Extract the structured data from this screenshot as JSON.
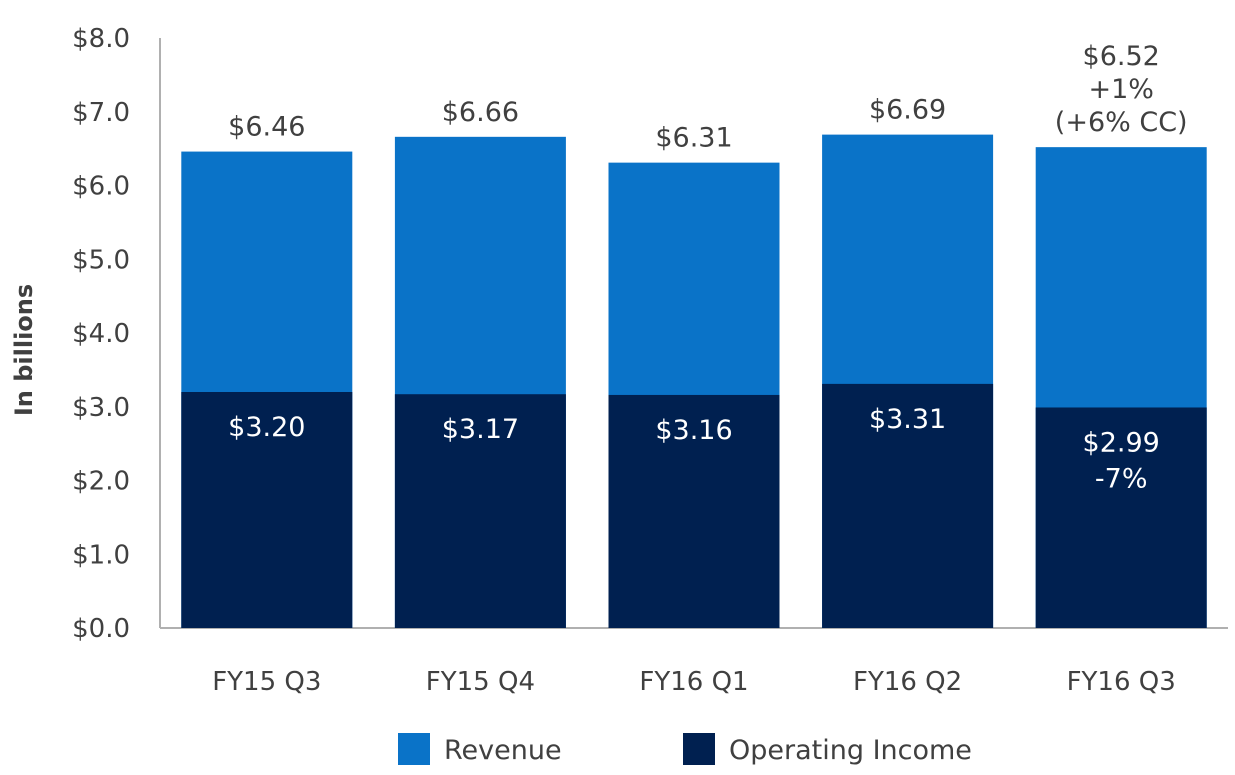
{
  "chart_data": {
    "type": "bar",
    "stacked": false,
    "overlay": true,
    "categories": [
      "FY15 Q3",
      "FY15 Q4",
      "FY16 Q1",
      "FY16 Q2",
      "FY16 Q3"
    ],
    "series": [
      {
        "name": "Revenue",
        "color": "#0a73c8",
        "values": [
          6.46,
          6.66,
          6.31,
          6.69,
          6.52
        ],
        "labels": [
          [
            "$6.46"
          ],
          [
            "$6.66"
          ],
          [
            "$6.31"
          ],
          [
            "$6.69"
          ],
          [
            "$6.52",
            "+1%",
            "(+6% CC)"
          ]
        ]
      },
      {
        "name": "Operating Income",
        "color": "#002050",
        "values": [
          3.2,
          3.17,
          3.16,
          3.31,
          2.99
        ],
        "labels": [
          [
            "$3.20"
          ],
          [
            "$3.17"
          ],
          [
            "$3.16"
          ],
          [
            "$3.31"
          ],
          [
            "$2.99",
            "-7%"
          ]
        ]
      }
    ],
    "ylabel": "In billions",
    "xlabel": "",
    "ylim": [
      0,
      8
    ],
    "yticks": [
      "$0.0",
      "$1.0",
      "$2.0",
      "$3.0",
      "$4.0",
      "$5.0",
      "$6.0",
      "$7.0",
      "$8.0"
    ],
    "grid": false,
    "legend": "bottom-center"
  }
}
